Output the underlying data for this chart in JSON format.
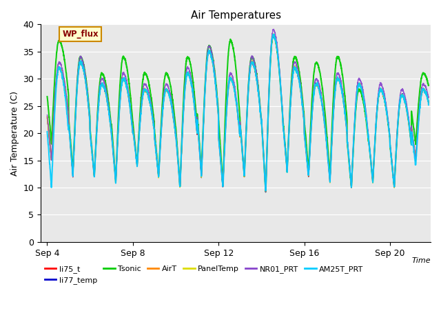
{
  "title": "Air Temperatures",
  "ylabel": "Air Temperature (C)",
  "xlabel": "Time",
  "ylim": [
    0,
    40
  ],
  "yticks": [
    0,
    5,
    10,
    15,
    20,
    25,
    30,
    35,
    40
  ],
  "xtick_labels": [
    "Sep 4",
    "Sep 8",
    "Sep 12",
    "Sep 16",
    "Sep 20"
  ],
  "xtick_positions": [
    4,
    8,
    12,
    16,
    20
  ],
  "background_color": "#e8e8e8",
  "legend_box_facecolor": "#ffffcc",
  "legend_box_edgecolor": "#cc8800",
  "legend_box_text": "WP_flux",
  "legend_box_text_color": "#880000",
  "series": [
    {
      "name": "li75_t",
      "color": "#ff0000",
      "lw": 1.0
    },
    {
      "name": "li77_temp",
      "color": "#0000cc",
      "lw": 1.0
    },
    {
      "name": "Tsonic",
      "color": "#00cc00",
      "lw": 1.5
    },
    {
      "name": "AirT",
      "color": "#ff8800",
      "lw": 1.0
    },
    {
      "name": "PanelTemp",
      "color": "#dddd00",
      "lw": 1.0
    },
    {
      "name": "NR01_PRT",
      "color": "#8844cc",
      "lw": 1.0
    },
    {
      "name": "AM25T_PRT",
      "color": "#00ccff",
      "lw": 1.5
    }
  ],
  "start_day": 4.0,
  "end_day": 21.8,
  "core_peaks": [
    32,
    33,
    29,
    30,
    28,
    28,
    31,
    35,
    30,
    33,
    38,
    32,
    29,
    30,
    29,
    28,
    27,
    28
  ],
  "core_mins": [
    15,
    12,
    12,
    11,
    14,
    12,
    10,
    12,
    10,
    12,
    9,
    13,
    12,
    11,
    10,
    11,
    10,
    15
  ],
  "tsonic_peaks": [
    37,
    34,
    31,
    34,
    31,
    31,
    34,
    36,
    37,
    34,
    38,
    34,
    33,
    34,
    28,
    28,
    27,
    31
  ],
  "tsonic_mins": [
    18,
    13,
    12,
    11,
    14,
    12,
    10,
    13,
    10,
    12,
    9,
    13,
    13,
    12,
    10,
    11,
    10,
    18
  ],
  "am25_mins": [
    10,
    12,
    12,
    11,
    14,
    12,
    10,
    12,
    10,
    12,
    9,
    13,
    12,
    11,
    10,
    11,
    10,
    14
  ]
}
